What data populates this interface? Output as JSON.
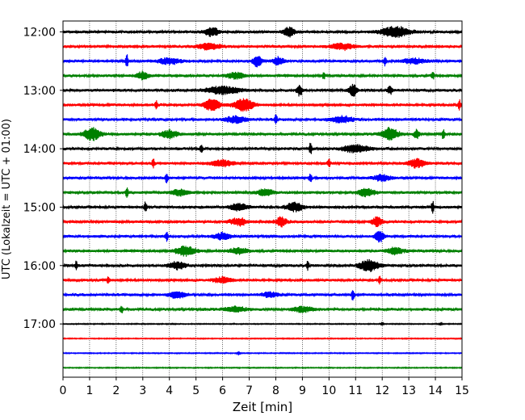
{
  "chart_data": {
    "type": "line",
    "title": "",
    "xlabel": "Zeit  [min]",
    "ylabel": "UTC (Lokalzeit = UTC + 01:00)",
    "xlim": [
      0,
      15
    ],
    "x_ticks": [
      0,
      1,
      2,
      3,
      4,
      5,
      6,
      7,
      8,
      9,
      10,
      11,
      12,
      13,
      14,
      15
    ],
    "x_tick_labels": [
      "0",
      "1",
      "2",
      "3",
      "4",
      "5",
      "6",
      "7",
      "8",
      "9",
      "10",
      "11",
      "12",
      "13",
      "14",
      "15"
    ],
    "y_tick_labels": [
      "12:00",
      "13:00",
      "14:00",
      "15:00",
      "16:00",
      "17:00"
    ],
    "grid_x": true,
    "grid_y": false,
    "trace_colors": [
      "#000000",
      "#ff0000",
      "#0000ff",
      "#008000"
    ],
    "series": [
      {
        "start": "12:00",
        "color": "#000000",
        "events": [
          [
            5.6,
            0.7,
            0.25
          ],
          [
            8.5,
            0.8,
            0.2
          ],
          [
            12.5,
            0.9,
            0.5
          ]
        ]
      },
      {
        "start": "12:15",
        "color": "#ff0000",
        "events": [
          [
            5.5,
            0.5,
            0.4
          ],
          [
            10.5,
            0.5,
            0.4
          ]
        ]
      },
      {
        "start": "12:30",
        "color": "#0000ff",
        "events": [
          [
            2.4,
            1.0,
            0.05
          ],
          [
            4.0,
            0.5,
            0.4
          ],
          [
            7.3,
            1.0,
            0.15
          ],
          [
            8.1,
            0.6,
            0.2
          ],
          [
            12.1,
            0.8,
            0.05
          ],
          [
            13.2,
            0.4,
            0.4
          ]
        ]
      },
      {
        "start": "12:45",
        "color": "#008000",
        "events": [
          [
            3.0,
            0.6,
            0.2
          ],
          [
            6.5,
            0.5,
            0.3
          ],
          [
            9.8,
            0.6,
            0.05
          ],
          [
            13.9,
            0.6,
            0.05
          ]
        ]
      },
      {
        "start": "13:00",
        "color": "#000000",
        "events": [
          [
            6.0,
            0.6,
            0.6
          ],
          [
            8.9,
            0.9,
            0.1
          ],
          [
            10.9,
            1.0,
            0.15
          ],
          [
            12.3,
            0.6,
            0.1
          ]
        ]
      },
      {
        "start": "13:15",
        "color": "#ff0000",
        "events": [
          [
            3.5,
            0.7,
            0.05
          ],
          [
            5.6,
            0.9,
            0.3
          ],
          [
            6.8,
            1.0,
            0.35
          ],
          [
            14.9,
            0.9,
            0.05
          ]
        ]
      },
      {
        "start": "13:30",
        "color": "#0000ff",
        "events": [
          [
            6.5,
            0.5,
            0.4
          ],
          [
            8.0,
            0.7,
            0.05
          ],
          [
            10.5,
            0.5,
            0.4
          ]
        ]
      },
      {
        "start": "13:45",
        "color": "#008000",
        "events": [
          [
            1.1,
            1.0,
            0.3
          ],
          [
            4.0,
            0.6,
            0.3
          ],
          [
            12.3,
            1.0,
            0.3
          ],
          [
            13.3,
            0.7,
            0.1
          ],
          [
            14.3,
            0.9,
            0.05
          ]
        ]
      },
      {
        "start": "14:00",
        "color": "#000000",
        "events": [
          [
            5.2,
            0.6,
            0.05
          ],
          [
            9.3,
            1.0,
            0.05
          ],
          [
            11.0,
            0.6,
            0.5
          ]
        ]
      },
      {
        "start": "14:15",
        "color": "#ff0000",
        "events": [
          [
            3.4,
            0.7,
            0.05
          ],
          [
            6.0,
            0.5,
            0.4
          ],
          [
            10.0,
            0.7,
            0.05
          ],
          [
            13.3,
            0.7,
            0.3
          ]
        ]
      },
      {
        "start": "14:30",
        "color": "#0000ff",
        "events": [
          [
            3.9,
            0.8,
            0.05
          ],
          [
            9.3,
            0.7,
            0.05
          ],
          [
            12.0,
            0.5,
            0.3
          ]
        ]
      },
      {
        "start": "14:45",
        "color": "#008000",
        "events": [
          [
            2.4,
            0.9,
            0.05
          ],
          [
            4.4,
            0.5,
            0.3
          ],
          [
            7.6,
            0.5,
            0.3
          ],
          [
            11.4,
            0.6,
            0.3
          ]
        ]
      },
      {
        "start": "15:00",
        "color": "#000000",
        "events": [
          [
            3.1,
            0.9,
            0.05
          ],
          [
            6.6,
            0.6,
            0.3
          ],
          [
            8.7,
            0.7,
            0.3
          ],
          [
            13.9,
            1.0,
            0.05
          ]
        ]
      },
      {
        "start": "15:15",
        "color": "#ff0000",
        "events": [
          [
            6.6,
            0.6,
            0.3
          ],
          [
            8.2,
            0.7,
            0.2
          ],
          [
            11.8,
            0.7,
            0.2
          ]
        ]
      },
      {
        "start": "15:30",
        "color": "#0000ff",
        "events": [
          [
            3.9,
            0.8,
            0.05
          ],
          [
            6.0,
            0.5,
            0.3
          ],
          [
            11.9,
            1.0,
            0.15
          ]
        ]
      },
      {
        "start": "15:45",
        "color": "#008000",
        "events": [
          [
            4.6,
            0.8,
            0.35
          ],
          [
            6.6,
            0.5,
            0.3
          ],
          [
            12.5,
            0.5,
            0.3
          ]
        ]
      },
      {
        "start": "16:00",
        "color": "#000000",
        "events": [
          [
            0.5,
            0.7,
            0.05
          ],
          [
            4.3,
            0.6,
            0.3
          ],
          [
            9.2,
            0.7,
            0.05
          ],
          [
            11.5,
            0.9,
            0.35
          ]
        ]
      },
      {
        "start": "16:15",
        "color": "#ff0000",
        "events": [
          [
            1.7,
            0.6,
            0.05
          ],
          [
            6.0,
            0.5,
            0.3
          ],
          [
            11.9,
            0.6,
            0.05
          ]
        ]
      },
      {
        "start": "16:30",
        "color": "#0000ff",
        "events": [
          [
            4.3,
            0.5,
            0.3
          ],
          [
            7.8,
            0.4,
            0.3
          ],
          [
            10.9,
            1.0,
            0.05
          ]
        ]
      },
      {
        "start": "16:45",
        "color": "#008000",
        "events": [
          [
            2.2,
            0.6,
            0.05
          ],
          [
            6.5,
            0.4,
            0.4
          ],
          [
            9.0,
            0.4,
            0.4
          ]
        ]
      },
      {
        "start": "17:00",
        "color": "#000000",
        "events": [
          [
            12.0,
            0.3,
            0.05
          ],
          [
            14.2,
            0.3,
            0.05
          ]
        ]
      },
      {
        "start": "17:15",
        "color": "#ff0000",
        "events": []
      },
      {
        "start": "17:30",
        "color": "#0000ff",
        "events": [
          [
            6.6,
            0.3,
            0.05
          ]
        ]
      },
      {
        "start": "17:45",
        "color": "#008000",
        "events": []
      }
    ]
  }
}
